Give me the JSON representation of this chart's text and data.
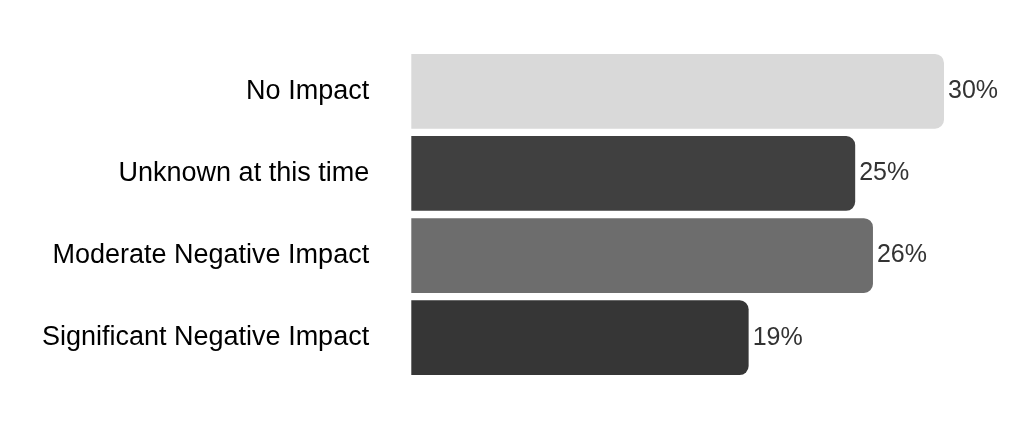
{
  "chart_data": {
    "type": "bar",
    "orientation": "horizontal",
    "categories": [
      "No Impact",
      "Unknown at this time",
      "Moderate Negative Impact",
      "Significant Negative Impact"
    ],
    "values": [
      30,
      25,
      26,
      19
    ],
    "colors": [
      "#d9d9d9",
      "#404040",
      "#6d6d6d",
      "#363636"
    ],
    "value_labels": [
      "30%",
      "25%",
      "26%",
      "19%"
    ],
    "tick_labels": "y",
    "legend": false
  }
}
